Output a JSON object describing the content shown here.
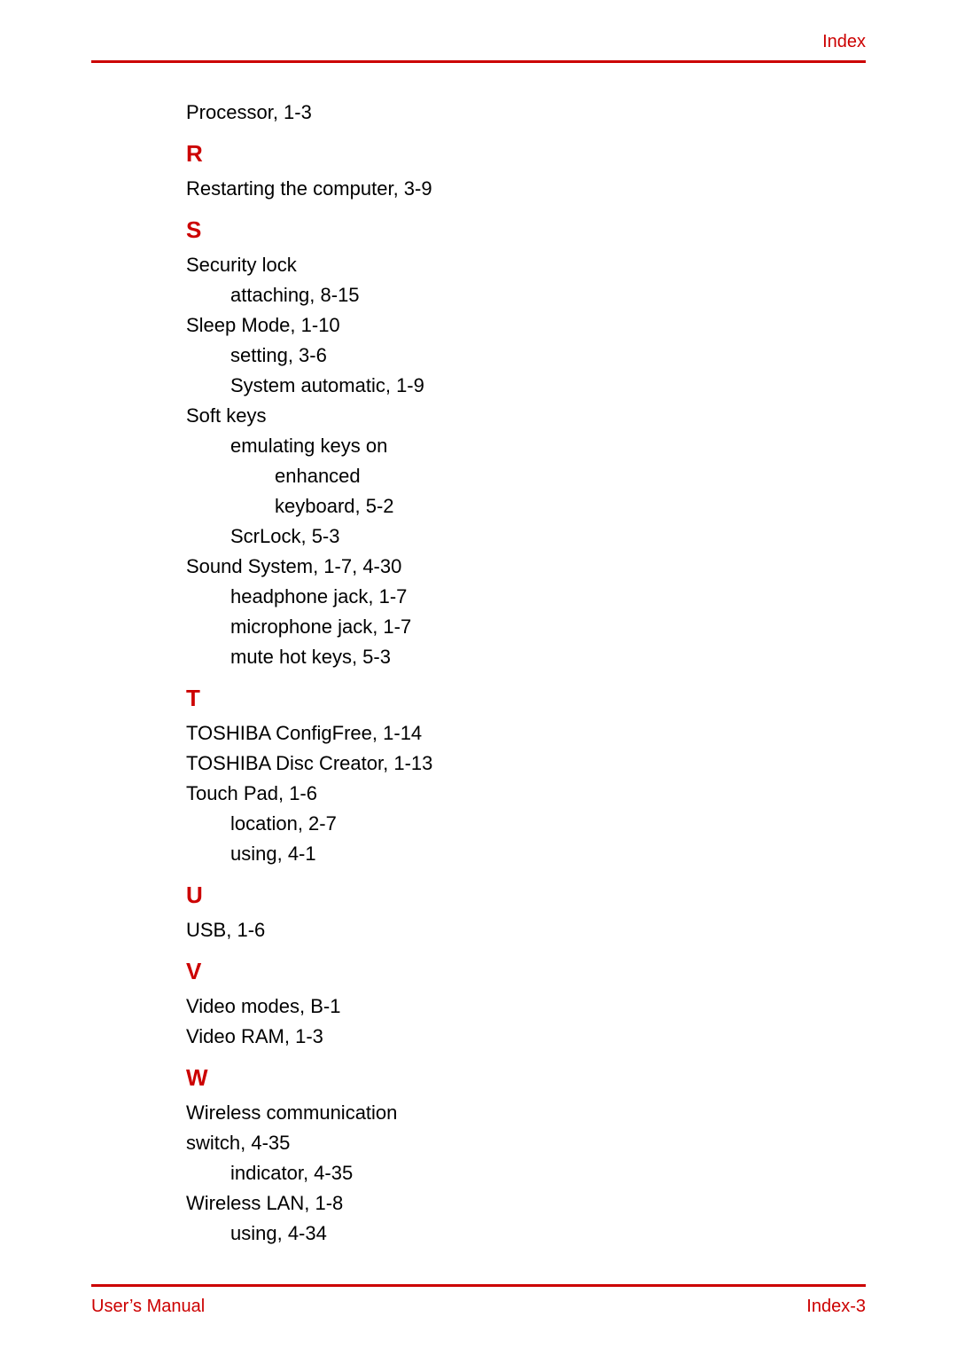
{
  "header": {
    "right": "Index"
  },
  "footer": {
    "left": "User’s Manual",
    "right": "Index-3"
  },
  "colors": {
    "accent": "#cc0000",
    "text": "#000000",
    "background": "#ffffff"
  },
  "index": {
    "pre_entries": [
      "Processor, 1-3"
    ],
    "sections": [
      {
        "letter": "R",
        "lines": [
          {
            "text": "Restarting the computer, 3-9",
            "indent": 0
          }
        ]
      },
      {
        "letter": "S",
        "lines": [
          {
            "text": "Security lock",
            "indent": 0
          },
          {
            "text": "attaching, 8-15",
            "indent": 1
          },
          {
            "text": "Sleep Mode, 1-10",
            "indent": 0
          },
          {
            "text": "setting, 3-6",
            "indent": 1
          },
          {
            "text": "System automatic, 1-9",
            "indent": 1
          },
          {
            "text": "Soft keys",
            "indent": 0
          },
          {
            "text": "emulating keys on",
            "indent": 1
          },
          {
            "text": "enhanced",
            "indent": 2
          },
          {
            "text": "keyboard, 5-2",
            "indent": 2
          },
          {
            "text": "ScrLock, 5-3",
            "indent": 1
          },
          {
            "text": "Sound System, 1-7, 4-30",
            "indent": 0
          },
          {
            "text": "headphone jack, 1-7",
            "indent": 1
          },
          {
            "text": "microphone jack, 1-7",
            "indent": 1
          },
          {
            "text": "mute hot keys, 5-3",
            "indent": 1
          }
        ]
      },
      {
        "letter": "T",
        "lines": [
          {
            "text": "TOSHIBA ConfigFree, 1-14",
            "indent": 0
          },
          {
            "text": "TOSHIBA Disc Creator, 1-13",
            "indent": 0
          },
          {
            "text": "Touch Pad, 1-6",
            "indent": 0
          },
          {
            "text": "location, 2-7",
            "indent": 1
          },
          {
            "text": "using, 4-1",
            "indent": 1
          }
        ]
      },
      {
        "letter": "U",
        "lines": [
          {
            "text": "USB, 1-6",
            "indent": 0
          }
        ]
      },
      {
        "letter": "V",
        "lines": [
          {
            "text": "Video modes, B-1",
            "indent": 0
          },
          {
            "text": "Video RAM, 1-3",
            "indent": 0
          }
        ]
      },
      {
        "letter": "W",
        "lines": [
          {
            "text": "Wireless communication",
            "indent": 0
          },
          {
            "text": "switch, 4-35",
            "indent": 0
          },
          {
            "text": "indicator, 4-35",
            "indent": 1
          },
          {
            "text": "Wireless LAN, 1-8",
            "indent": 0
          },
          {
            "text": "using, 4-34",
            "indent": 1
          }
        ]
      }
    ]
  }
}
